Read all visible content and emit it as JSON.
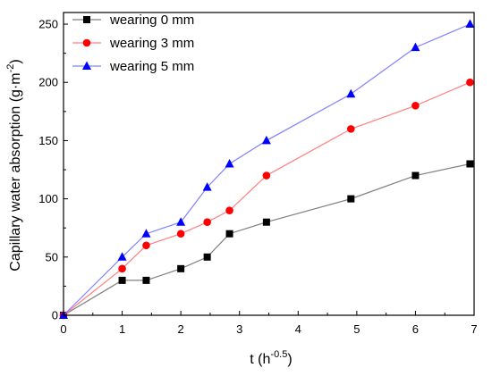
{
  "chart_data": {
    "type": "line",
    "xlabel": "t (h",
    "xlabel_sup": "-0.5",
    "xlabel_end": ")",
    "ylabel": "Capillary water absorption (g·m",
    "ylabel_sup": "-2",
    "ylabel_end": ")",
    "xlim": [
      0,
      7
    ],
    "ylim": [
      0,
      260
    ],
    "xticks": [
      0,
      1,
      2,
      3,
      4,
      5,
      6,
      7
    ],
    "yticks": [
      0,
      50,
      100,
      150,
      200,
      250
    ],
    "grid": false,
    "legend_position": "top-left",
    "series": [
      {
        "name": "wearing 0 mm",
        "marker": "square",
        "color": "#000000",
        "line_color": "#7f7f7f",
        "x": [
          0,
          1,
          1.41,
          2,
          2.45,
          2.83,
          3.46,
          4.9,
          6,
          6.93
        ],
        "y": [
          0,
          30,
          30,
          40,
          50,
          70,
          80,
          100,
          120,
          130
        ]
      },
      {
        "name": "wearing 3 mm",
        "marker": "circle",
        "color": "#ff0000",
        "line_color": "#ff8080",
        "x": [
          0,
          1,
          1.41,
          2,
          2.45,
          2.83,
          3.46,
          4.9,
          6,
          6.93
        ],
        "y": [
          0,
          40,
          60,
          70,
          80,
          90,
          120,
          160,
          180,
          200
        ]
      },
      {
        "name": "wearing 5 mm",
        "marker": "triangle",
        "color": "#0000ff",
        "line_color": "#8080ff",
        "x": [
          0,
          1,
          1.41,
          2,
          2.45,
          2.83,
          3.46,
          4.9,
          6,
          6.93
        ],
        "y": [
          0,
          50,
          70,
          80,
          110,
          130,
          150,
          190,
          230,
          250
        ]
      }
    ]
  }
}
